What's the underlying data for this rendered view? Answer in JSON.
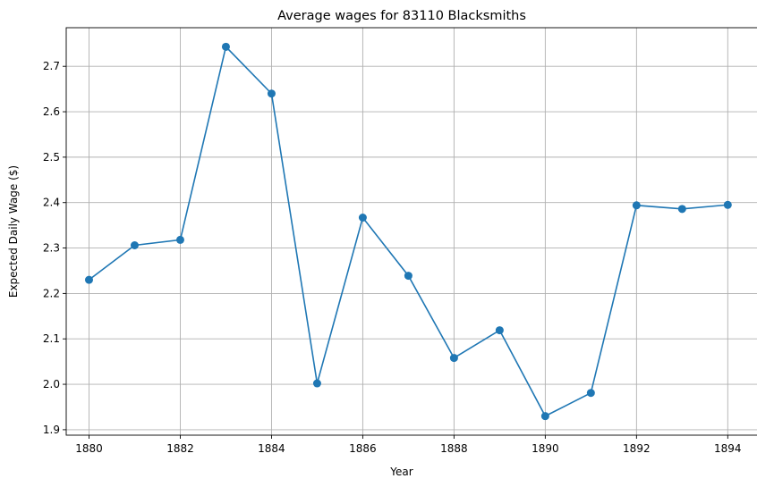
{
  "chart_data": {
    "type": "line",
    "title": "Average wages for 83110 Blacksmiths",
    "xlabel": "Year",
    "ylabel": "Expected Daily Wage ($)",
    "x": [
      1880,
      1881,
      1882,
      1883,
      1884,
      1885,
      1886,
      1887,
      1888,
      1889,
      1890,
      1891,
      1892,
      1893,
      1894
    ],
    "series": [
      {
        "values": [
          2.23,
          2.306,
          2.318,
          2.743,
          2.64,
          2.002,
          2.367,
          2.239,
          2.058,
          2.119,
          1.93,
          1.981,
          2.394,
          2.386,
          2.395
        ],
        "color": "#1f77b4",
        "marker": "circle"
      }
    ],
    "xlim": [
      1879.5,
      1894.7
    ],
    "ylim": [
      1.888,
      2.785
    ],
    "xticks": [
      1880,
      1882,
      1884,
      1886,
      1888,
      1890,
      1892,
      1894
    ],
    "xtick_labels": [
      "1880",
      "1882",
      "1884",
      "1886",
      "1888",
      "1890",
      "1892",
      "1894"
    ],
    "yticks": [
      1.9,
      2.0,
      2.1,
      2.2,
      2.3,
      2.4,
      2.5,
      2.6,
      2.7
    ],
    "ytick_labels": [
      "1.9",
      "2.0",
      "2.1",
      "2.2",
      "2.3",
      "2.4",
      "2.5",
      "2.6",
      "2.7"
    ],
    "grid": true,
    "legend": false
  }
}
